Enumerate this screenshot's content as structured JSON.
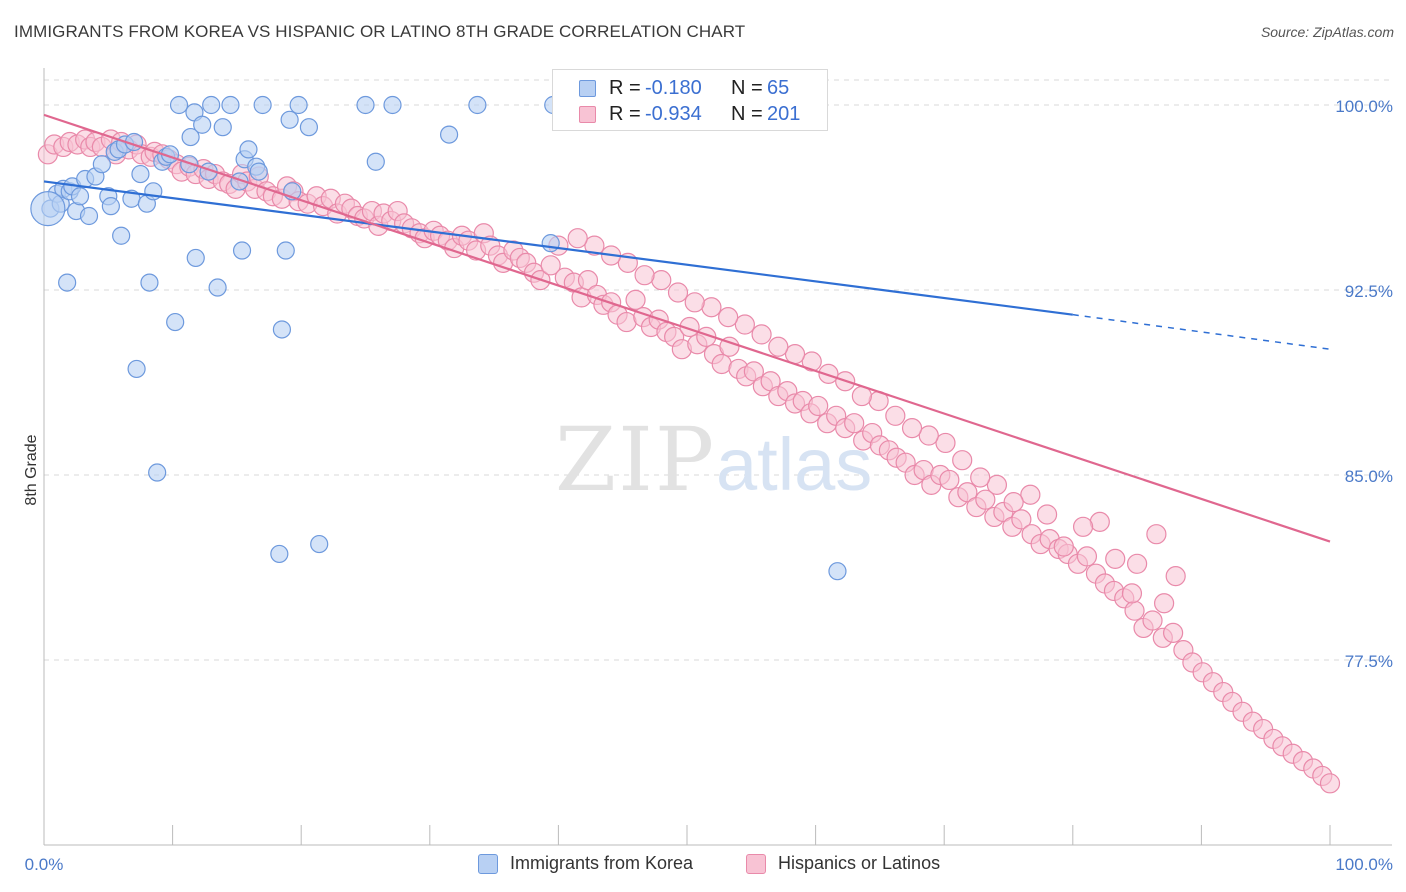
{
  "header": {
    "title": "IMMIGRANTS FROM KOREA VS HISPANIC OR LATINO 8TH GRADE CORRELATION CHART",
    "source": "Source: ZipAtlas.com"
  },
  "watermark": {
    "zip": "ZIP",
    "atlas": "atlas"
  },
  "stats_legend": {
    "rows": [
      {
        "r_label": "R =",
        "r_value": "-0.180",
        "n_label": "N =",
        "n_value": "65"
      },
      {
        "r_label": "R =",
        "r_value": "-0.934",
        "n_label": "N =",
        "n_value": "201"
      }
    ]
  },
  "legend": {
    "items": [
      {
        "label": "Immigrants from Korea"
      },
      {
        "label": "Hispanics or Latinos"
      }
    ]
  },
  "colors": {
    "korea_fill": "#b8d0f3",
    "korea_stroke": "#6d99dd",
    "korea_line": "#2f6fd4",
    "hisp_fill": "#f8c3d4",
    "hisp_stroke": "#e98aaa",
    "hisp_line": "#e0678f",
    "tick_text": "#4a79c8",
    "grid": "#d8d8d8"
  },
  "chart_data": {
    "type": "scatter",
    "title": "IMMIGRANTS FROM KOREA VS HISPANIC OR LATINO 8TH GRADE CORRELATION CHART",
    "xlabel": "",
    "ylabel": "8th Grade",
    "xlim": [
      0,
      100
    ],
    "ylim": [
      70.0,
      101.5
    ],
    "x_tick_labels": [
      "0.0%",
      "100.0%"
    ],
    "y_ticks": [
      77.5,
      85.0,
      92.5,
      100.0
    ],
    "y_tick_labels": [
      "77.5%",
      "85.0%",
      "92.5%",
      "100.0%"
    ],
    "grid": true,
    "legend_position": "bottom",
    "series": [
      {
        "name": "Immigrants from Korea",
        "R": -0.18,
        "N": 65,
        "trend": {
          "x": [
            0,
            80,
            100
          ],
          "y": [
            96.9,
            91.5,
            90.1
          ],
          "solid_until": 80
        },
        "points": [
          [
            0.5,
            95.8
          ],
          [
            1.0,
            96.4
          ],
          [
            1.3,
            96.0
          ],
          [
            1.5,
            96.6
          ],
          [
            1.8,
            92.8
          ],
          [
            2.0,
            96.5
          ],
          [
            2.2,
            96.7
          ],
          [
            2.5,
            95.7
          ],
          [
            2.8,
            96.3
          ],
          [
            3.2,
            97.0
          ],
          [
            3.5,
            95.5
          ],
          [
            4.0,
            97.1
          ],
          [
            4.5,
            97.6
          ],
          [
            5.0,
            96.3
          ],
          [
            5.2,
            95.9
          ],
          [
            5.5,
            98.1
          ],
          [
            5.8,
            98.2
          ],
          [
            6.0,
            94.7
          ],
          [
            6.3,
            98.4
          ],
          [
            6.8,
            96.2
          ],
          [
            7.0,
            98.5
          ],
          [
            7.5,
            97.2
          ],
          [
            7.2,
            89.3
          ],
          [
            8.0,
            96.0
          ],
          [
            8.2,
            92.8
          ],
          [
            8.5,
            96.5
          ],
          [
            8.8,
            85.1
          ],
          [
            9.2,
            97.7
          ],
          [
            9.5,
            97.9
          ],
          [
            10.2,
            91.2
          ],
          [
            10.5,
            100.0
          ],
          [
            11.3,
            97.6
          ],
          [
            11.4,
            98.7
          ],
          [
            11.8,
            93.8
          ],
          [
            11.7,
            99.7
          ],
          [
            12.3,
            99.2
          ],
          [
            12.8,
            97.3
          ],
          [
            13.0,
            100.0
          ],
          [
            13.5,
            92.6
          ],
          [
            13.9,
            99.1
          ],
          [
            14.5,
            100.0
          ],
          [
            15.4,
            94.1
          ],
          [
            15.6,
            97.8
          ],
          [
            15.9,
            98.2
          ],
          [
            16.5,
            97.5
          ],
          [
            16.7,
            97.3
          ],
          [
            17.0,
            100.0
          ],
          [
            18.3,
            81.8
          ],
          [
            18.5,
            90.9
          ],
          [
            18.8,
            94.1
          ],
          [
            19.1,
            99.4
          ],
          [
            19.3,
            96.5
          ],
          [
            19.8,
            100.0
          ],
          [
            20.6,
            99.1
          ],
          [
            21.4,
            82.2
          ],
          [
            25.0,
            100.0
          ],
          [
            25.8,
            97.7
          ],
          [
            27.1,
            100.0
          ],
          [
            31.5,
            98.8
          ],
          [
            33.7,
            100.0
          ],
          [
            39.4,
            94.4
          ],
          [
            39.6,
            100.0
          ],
          [
            61.7,
            81.1
          ],
          [
            15.2,
            96.9
          ],
          [
            9.8,
            98.0
          ]
        ]
      },
      {
        "name": "Hispanics or Latinos",
        "R": -0.934,
        "N": 201,
        "trend": {
          "x": [
            0,
            100
          ],
          "y": [
            99.6,
            82.3
          ]
        },
        "points": [
          [
            0.3,
            98.0
          ],
          [
            0.8,
            98.4
          ],
          [
            1.5,
            98.3
          ],
          [
            2.0,
            98.5
          ],
          [
            2.6,
            98.4
          ],
          [
            3.2,
            98.6
          ],
          [
            3.6,
            98.3
          ],
          [
            4.0,
            98.5
          ],
          [
            4.5,
            98.3
          ],
          [
            5.2,
            98.6
          ],
          [
            5.6,
            98.0
          ],
          [
            6.0,
            98.5
          ],
          [
            6.6,
            98.2
          ],
          [
            7.2,
            98.4
          ],
          [
            7.6,
            98.0
          ],
          [
            8.3,
            97.9
          ],
          [
            8.6,
            98.1
          ],
          [
            9.2,
            98.0
          ],
          [
            9.7,
            97.8
          ],
          [
            10.3,
            97.6
          ],
          [
            10.7,
            97.3
          ],
          [
            11.3,
            97.5
          ],
          [
            11.8,
            97.2
          ],
          [
            12.4,
            97.4
          ],
          [
            12.8,
            97.0
          ],
          [
            13.3,
            97.2
          ],
          [
            13.9,
            96.9
          ],
          [
            14.4,
            96.8
          ],
          [
            14.9,
            96.6
          ],
          [
            15.4,
            97.2
          ],
          [
            15.8,
            96.9
          ],
          [
            16.4,
            96.6
          ],
          [
            16.7,
            97.1
          ],
          [
            17.3,
            96.5
          ],
          [
            17.8,
            96.3
          ],
          [
            18.5,
            96.2
          ],
          [
            18.9,
            96.7
          ],
          [
            19.4,
            96.5
          ],
          [
            19.8,
            96.1
          ],
          [
            20.5,
            96.0
          ],
          [
            21.2,
            96.3
          ],
          [
            21.7,
            95.9
          ],
          [
            22.3,
            96.2
          ],
          [
            22.8,
            95.6
          ],
          [
            23.4,
            96.0
          ],
          [
            23.9,
            95.8
          ],
          [
            24.4,
            95.5
          ],
          [
            24.9,
            95.4
          ],
          [
            25.5,
            95.7
          ],
          [
            26.0,
            95.1
          ],
          [
            26.4,
            95.6
          ],
          [
            27.0,
            95.3
          ],
          [
            27.5,
            95.7
          ],
          [
            28.0,
            95.2
          ],
          [
            28.6,
            95.0
          ],
          [
            29.2,
            94.8
          ],
          [
            29.6,
            94.6
          ],
          [
            30.3,
            94.9
          ],
          [
            30.8,
            94.7
          ],
          [
            31.4,
            94.5
          ],
          [
            31.9,
            94.2
          ],
          [
            32.5,
            94.7
          ],
          [
            33.0,
            94.5
          ],
          [
            33.6,
            94.1
          ],
          [
            34.2,
            94.8
          ],
          [
            34.7,
            94.3
          ],
          [
            35.3,
            93.9
          ],
          [
            35.7,
            93.6
          ],
          [
            36.5,
            94.1
          ],
          [
            37.0,
            93.8
          ],
          [
            37.5,
            93.6
          ],
          [
            38.1,
            93.2
          ],
          [
            38.6,
            92.9
          ],
          [
            39.4,
            93.5
          ],
          [
            40.0,
            94.3
          ],
          [
            40.5,
            93.0
          ],
          [
            41.2,
            92.8
          ],
          [
            41.8,
            92.2
          ],
          [
            42.3,
            92.9
          ],
          [
            43.0,
            92.3
          ],
          [
            43.5,
            91.9
          ],
          [
            44.1,
            92.0
          ],
          [
            44.6,
            91.5
          ],
          [
            45.3,
            91.2
          ],
          [
            46.0,
            92.1
          ],
          [
            46.6,
            91.4
          ],
          [
            47.2,
            91.0
          ],
          [
            47.8,
            91.3
          ],
          [
            48.4,
            90.8
          ],
          [
            49.0,
            90.6
          ],
          [
            49.6,
            90.1
          ],
          [
            50.2,
            91.0
          ],
          [
            50.8,
            90.3
          ],
          [
            51.5,
            90.6
          ],
          [
            52.1,
            89.9
          ],
          [
            52.7,
            89.5
          ],
          [
            53.3,
            90.2
          ],
          [
            54.0,
            89.3
          ],
          [
            54.6,
            89.0
          ],
          [
            55.2,
            89.2
          ],
          [
            55.9,
            88.6
          ],
          [
            56.5,
            88.8
          ],
          [
            57.1,
            88.2
          ],
          [
            57.8,
            88.4
          ],
          [
            58.4,
            87.9
          ],
          [
            59.0,
            88.0
          ],
          [
            59.6,
            87.5
          ],
          [
            60.2,
            87.8
          ],
          [
            60.9,
            87.1
          ],
          [
            61.6,
            87.4
          ],
          [
            62.3,
            86.9
          ],
          [
            63.0,
            87.1
          ],
          [
            63.7,
            86.4
          ],
          [
            64.4,
            86.7
          ],
          [
            65.0,
            86.2
          ],
          [
            65.7,
            86.0
          ],
          [
            66.3,
            85.7
          ],
          [
            67.0,
            85.5
          ],
          [
            67.7,
            85.0
          ],
          [
            68.4,
            85.2
          ],
          [
            69.0,
            84.6
          ],
          [
            69.7,
            85.0
          ],
          [
            70.4,
            84.8
          ],
          [
            71.1,
            84.1
          ],
          [
            71.8,
            84.3
          ],
          [
            72.5,
            83.7
          ],
          [
            73.2,
            84.0
          ],
          [
            73.9,
            83.3
          ],
          [
            74.6,
            83.5
          ],
          [
            75.3,
            82.9
          ],
          [
            76.0,
            83.2
          ],
          [
            76.8,
            82.6
          ],
          [
            77.5,
            82.2
          ],
          [
            78.2,
            82.4
          ],
          [
            78.9,
            82.0
          ],
          [
            79.6,
            81.8
          ],
          [
            80.4,
            81.4
          ],
          [
            81.1,
            81.7
          ],
          [
            81.8,
            81.0
          ],
          [
            82.5,
            80.6
          ],
          [
            83.2,
            80.3
          ],
          [
            84.0,
            80.0
          ],
          [
            84.8,
            79.5
          ],
          [
            85.5,
            78.8
          ],
          [
            86.2,
            79.1
          ],
          [
            87.0,
            78.4
          ],
          [
            87.8,
            78.6
          ],
          [
            88.6,
            77.9
          ],
          [
            89.3,
            77.4
          ],
          [
            90.1,
            77.0
          ],
          [
            90.9,
            76.6
          ],
          [
            91.7,
            76.2
          ],
          [
            92.4,
            75.8
          ],
          [
            93.2,
            75.4
          ],
          [
            94.0,
            75.0
          ],
          [
            94.8,
            74.7
          ],
          [
            95.6,
            74.3
          ],
          [
            96.3,
            74.0
          ],
          [
            97.1,
            73.7
          ],
          [
            97.9,
            73.4
          ],
          [
            98.7,
            73.1
          ],
          [
            99.4,
            72.8
          ],
          [
            100.0,
            72.5
          ],
          [
            86.5,
            82.6
          ],
          [
            87.1,
            79.8
          ],
          [
            88.0,
            80.9
          ],
          [
            85.0,
            81.4
          ],
          [
            84.6,
            80.2
          ],
          [
            83.3,
            81.6
          ],
          [
            82.1,
            83.1
          ],
          [
            80.8,
            82.9
          ],
          [
            79.3,
            82.1
          ],
          [
            78.0,
            83.4
          ],
          [
            76.7,
            84.2
          ],
          [
            75.4,
            83.9
          ],
          [
            74.1,
            84.6
          ],
          [
            72.8,
            84.9
          ],
          [
            71.4,
            85.6
          ],
          [
            70.1,
            86.3
          ],
          [
            68.8,
            86.6
          ],
          [
            67.5,
            86.9
          ],
          [
            66.2,
            87.4
          ],
          [
            64.9,
            88.0
          ],
          [
            63.6,
            88.2
          ],
          [
            62.3,
            88.8
          ],
          [
            61.0,
            89.1
          ],
          [
            59.7,
            89.6
          ],
          [
            58.4,
            89.9
          ],
          [
            57.1,
            90.2
          ],
          [
            55.8,
            90.7
          ],
          [
            54.5,
            91.1
          ],
          [
            53.2,
            91.4
          ],
          [
            51.9,
            91.8
          ],
          [
            50.6,
            92.0
          ],
          [
            49.3,
            92.4
          ],
          [
            48.0,
            92.9
          ],
          [
            46.7,
            93.1
          ],
          [
            45.4,
            93.6
          ],
          [
            44.1,
            93.9
          ],
          [
            42.8,
            94.3
          ],
          [
            41.5,
            94.6
          ]
        ]
      }
    ]
  }
}
